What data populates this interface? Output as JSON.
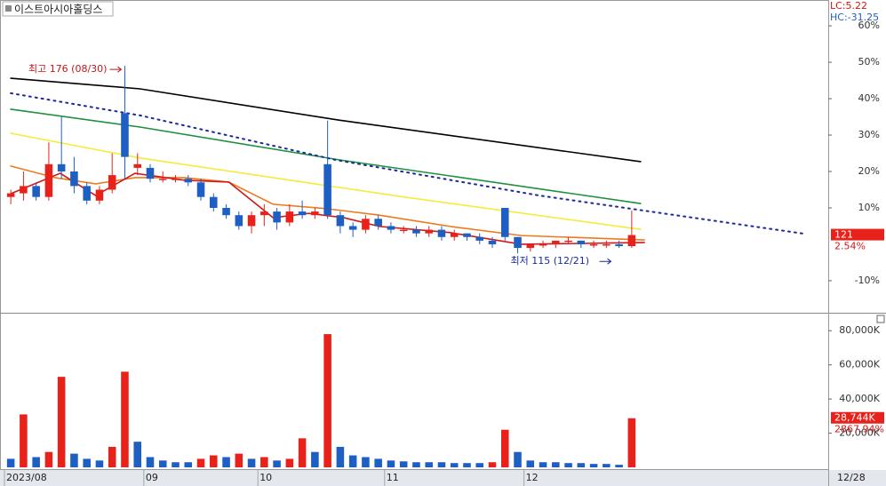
{
  "chart_data": [
    {
      "type": "candlestick",
      "title": "이스트아시아홀딩스",
      "lc": "LC:5.22",
      "hc": "HC:-31.25",
      "categories": [
        "2023/08",
        null,
        null,
        null,
        null,
        null,
        null,
        null,
        null,
        null,
        null,
        "09",
        null,
        null,
        null,
        null,
        null,
        null,
        null,
        null,
        "10",
        null,
        null,
        null,
        null,
        null,
        null,
        null,
        null,
        null,
        "11",
        null,
        null,
        null,
        null,
        null,
        null,
        null,
        null,
        null,
        null,
        "12",
        null,
        null,
        null,
        null,
        null,
        null,
        null,
        null
      ],
      "date_label": "12/28",
      "open": [
        13,
        14,
        16,
        13,
        22,
        20,
        16,
        12,
        15,
        36,
        21,
        21,
        18,
        18,
        18,
        17,
        13,
        10,
        8,
        5,
        8,
        9,
        6,
        9,
        8,
        22,
        8,
        5,
        4,
        7,
        5,
        4,
        4,
        3,
        4,
        2,
        3,
        2,
        1,
        10,
        2,
        -1,
        0,
        0,
        1,
        1,
        0,
        0,
        0,
        -0.5
      ],
      "high": [
        15,
        20,
        17,
        28,
        35,
        24,
        17,
        16,
        25,
        49,
        25,
        22,
        20,
        19,
        19,
        18,
        14,
        11,
        9,
        9,
        11,
        10,
        11,
        12,
        10,
        34,
        9,
        6,
        8,
        8,
        6,
        5,
        5,
        5,
        5,
        4,
        3,
        3,
        2,
        10,
        2,
        0,
        1,
        1,
        2,
        1,
        1,
        1,
        1,
        9.3
      ],
      "low": [
        11,
        12,
        12,
        12,
        18,
        14,
        11,
        11,
        14,
        18,
        19,
        17,
        17,
        17,
        16,
        12,
        9,
        7,
        4,
        3,
        5,
        4,
        5,
        7,
        7,
        7,
        3,
        2,
        3,
        4,
        3,
        3,
        2,
        2,
        1,
        1,
        1,
        0,
        -1,
        1,
        -2.5,
        -2,
        -1,
        -1,
        0,
        -1,
        -1,
        -1,
        -1,
        -1
      ],
      "close": [
        14,
        16,
        13,
        22,
        20,
        16,
        12,
        15,
        19,
        24,
        22,
        18,
        18,
        18,
        17,
        13,
        10,
        8,
        5,
        8,
        9,
        6,
        9,
        8,
        9,
        8,
        5,
        4,
        7,
        5,
        4,
        4,
        3,
        4,
        2,
        3,
        2,
        1,
        0,
        2,
        -1,
        0,
        0,
        1,
        1,
        0,
        0,
        0,
        -0.5,
        2.54
      ],
      "up_color": "#e8221b",
      "down_color": "#1e5fc4",
      "ylim": [
        -18.8,
        67.1
      ],
      "yticks": [
        {
          "value": 60,
          "label": "60%"
        },
        {
          "value": 50,
          "label": "50%"
        },
        {
          "value": 40,
          "label": "40%"
        },
        {
          "value": 30,
          "label": "30%"
        },
        {
          "value": 20,
          "label": "20%"
        },
        {
          "value": 10,
          "label": "10%"
        },
        {
          "value": -10,
          "label": "-10%"
        }
      ],
      "overlays": [
        {
          "color": "#000000",
          "style": "solid",
          "x": [
            0,
            10.2,
            25.9,
            49.7
          ],
          "values": [
            45.6,
            42.7,
            34.1,
            22.7
          ]
        },
        {
          "color": "#1e9040",
          "style": "solid",
          "x": [
            0,
            10.2,
            25.9,
            49.7
          ],
          "values": [
            37.1,
            32.2,
            23.2,
            11.2
          ]
        },
        {
          "color": "#f5ec3a",
          "style": "solid",
          "x": [
            0,
            10.2,
            20.7,
            31.2,
            49.7
          ],
          "values": [
            30.5,
            23.7,
            18.3,
            12.9,
            4.1
          ]
        },
        {
          "color": "#1a2a9a",
          "style": "dotted",
          "x": [
            0,
            10.2,
            25.6,
            41.7,
            62.6
          ],
          "values": [
            41.5,
            35.4,
            23.2,
            13.4,
            2.9
          ]
        },
        {
          "color": "#ee7a1e",
          "style": "solid",
          "x": [
            0,
            3.5,
            6.7,
            9.8,
            13.7,
            17.2,
            20.7,
            24.9,
            29.1,
            34.7,
            40.3,
            50
          ],
          "values": [
            21.5,
            18.3,
            16.6,
            18.3,
            18.3,
            17.1,
            11,
            9.8,
            8,
            4.9,
            2.4,
            1.2
          ]
        },
        {
          "color": "#d01818",
          "style": "solid",
          "x": [
            0,
            3.9,
            6.7,
            9.8,
            13.7,
            17.2,
            20.7,
            23.5,
            26.3,
            29.1,
            34.7,
            40.3,
            50
          ],
          "values": [
            13.9,
            19.5,
            13.4,
            19.5,
            17.6,
            17.1,
            7.3,
            8.5,
            7.3,
            4.9,
            3.2,
            0,
            0.5
          ]
        }
      ],
      "high_label": "최고 176 (08/30)",
      "low_label": "최저 115 (12/21)",
      "last_price_label": "121",
      "last_change_label": "2.54%"
    },
    {
      "type": "bar",
      "values": [
        5000,
        31000,
        6000,
        9000,
        53000,
        8000,
        5000,
        4000,
        12000,
        56000,
        15000,
        6000,
        4000,
        3000,
        3000,
        5000,
        7000,
        6000,
        8000,
        5000,
        6000,
        4000,
        5000,
        17000,
        9000,
        78000,
        12000,
        7000,
        6000,
        5000,
        4000,
        3500,
        3000,
        3000,
        3000,
        2500,
        2500,
        2500,
        3000,
        22000,
        9000,
        4000,
        3000,
        3000,
        2500,
        2500,
        2000,
        2000,
        1500,
        28744
      ],
      "up_color": "#e8221b",
      "down_color": "#1e5fc4",
      "ylim": [
        0,
        90000
      ],
      "yticks": [
        {
          "value": 80000,
          "label": "80,000K"
        },
        {
          "value": 60000,
          "label": "60,000K"
        },
        {
          "value": 40000,
          "label": "40,000K"
        },
        {
          "value": 20000,
          "label": "20,000K"
        }
      ],
      "last_label": "28,744K",
      "last_change_label": "2867.94%"
    }
  ]
}
